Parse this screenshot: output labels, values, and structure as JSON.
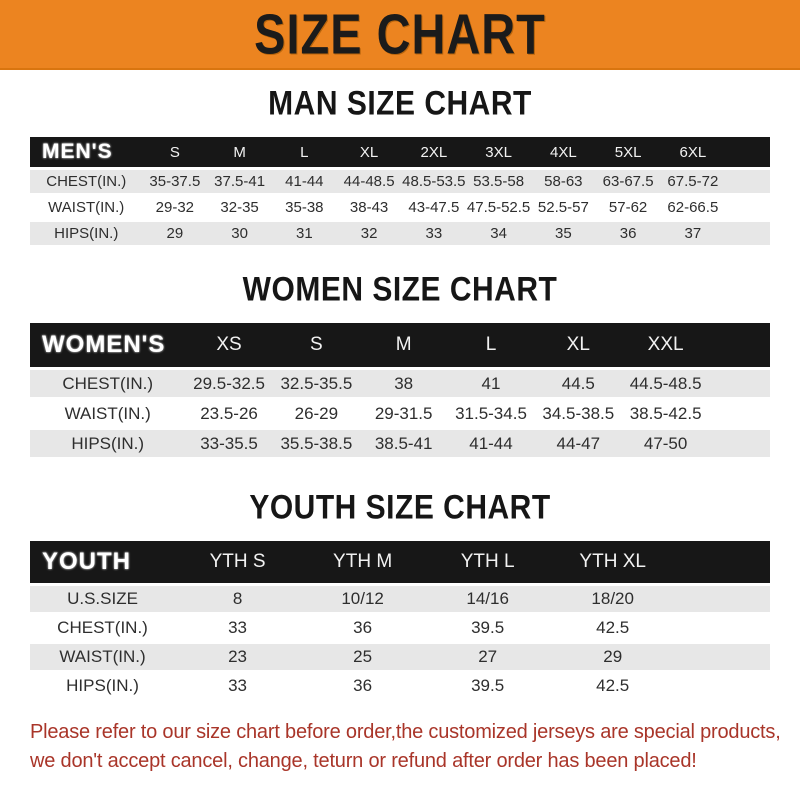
{
  "banner": {
    "title": "SIZE CHART"
  },
  "colors": {
    "banner_bg": "#EC8420",
    "header_bar": "#171717",
    "row_stripe": "#E7E7E7",
    "footer_text": "#A93529"
  },
  "tables": {
    "men": {
      "title": "MAN SIZE CHART",
      "header_label": "MEN'S",
      "columns": [
        "S",
        "M",
        "L",
        "XL",
        "2XL",
        "3XL",
        "4XL",
        "5XL",
        "6XL"
      ],
      "rows": [
        {
          "label": "CHEST(IN.)",
          "values": [
            "35-37.5",
            "37.5-41",
            "41-44",
            "44-48.5",
            "48.5-53.5",
            "53.5-58",
            "58-63",
            "63-67.5",
            "67.5-72"
          ]
        },
        {
          "label": "WAIST(IN.)",
          "values": [
            "29-32",
            "32-35",
            "35-38",
            "38-43",
            "43-47.5",
            "47.5-52.5",
            "52.5-57",
            "57-62",
            "62-66.5"
          ]
        },
        {
          "label": "HIPS(IN.)",
          "values": [
            "29",
            "30",
            "31",
            "32",
            "33",
            "34",
            "35",
            "36",
            "37"
          ]
        }
      ]
    },
    "women": {
      "title": "WOMEN SIZE CHART",
      "header_label": "WOMEN'S",
      "columns": [
        "XS",
        "S",
        "M",
        "L",
        "XL",
        "XXL"
      ],
      "rows": [
        {
          "label": "CHEST(IN.)",
          "values": [
            "29.5-32.5",
            "32.5-35.5",
            "38",
            "41",
            "44.5",
            "44.5-48.5"
          ]
        },
        {
          "label": "WAIST(IN.)",
          "values": [
            "23.5-26",
            "26-29",
            "29-31.5",
            "31.5-34.5",
            "34.5-38.5",
            "38.5-42.5"
          ]
        },
        {
          "label": "HIPS(IN.)",
          "values": [
            "33-35.5",
            "35.5-38.5",
            "38.5-41",
            "41-44",
            "44-47",
            "47-50"
          ]
        }
      ]
    },
    "youth": {
      "title": "YOUTH SIZE CHART",
      "header_label": "YOUTH",
      "columns": [
        "YTH S",
        "YTH M",
        "YTH L",
        "YTH XL"
      ],
      "rows": [
        {
          "label": "U.S.SIZE",
          "values": [
            "8",
            "10/12",
            "14/16",
            "18/20"
          ]
        },
        {
          "label": "CHEST(IN.)",
          "values": [
            "33",
            "36",
            "39.5",
            "42.5"
          ]
        },
        {
          "label": "WAIST(IN.)",
          "values": [
            "23",
            "25",
            "27",
            "29"
          ]
        },
        {
          "label": "HIPS(IN.)",
          "values": [
            "33",
            "36",
            "39.5",
            "42.5"
          ]
        }
      ]
    }
  },
  "footer": {
    "line1": "Please refer to our size chart before order,the customized jerseys are special products,",
    "line2": "we don't accept cancel, change, teturn or refund after order has been placed!"
  }
}
